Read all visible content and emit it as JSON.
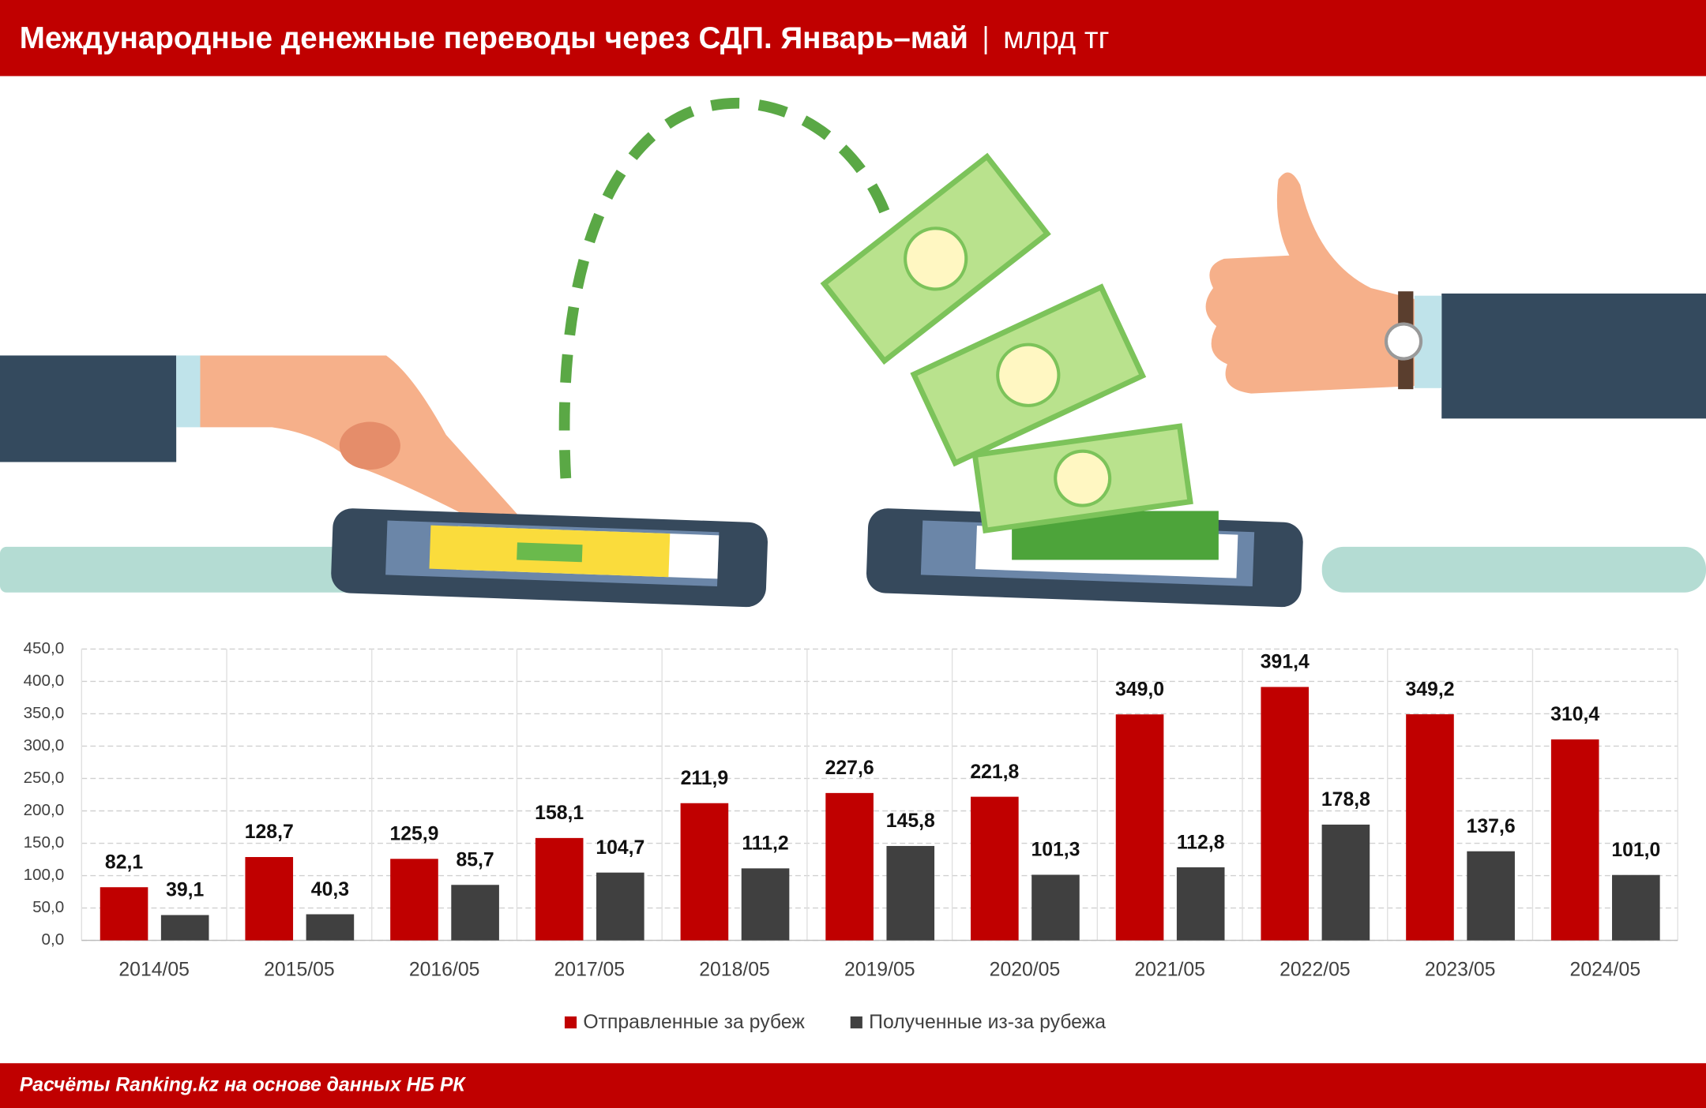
{
  "chart_data": {
    "type": "bar",
    "title": "Международные денежные переводы через СДП. Январь–май",
    "unit": "млрд тг",
    "source": "Расчёты Ranking.kz на основе данных НБ РК",
    "categories": [
      "2014/05",
      "2015/05",
      "2016/05",
      "2017/05",
      "2018/05",
      "2019/05",
      "2020/05",
      "2021/05",
      "2022/05",
      "2023/05",
      "2024/05"
    ],
    "series": [
      {
        "name": "Отправленные за рубеж",
        "color": "#c00000",
        "values": [
          82.1,
          128.7,
          125.9,
          158.1,
          211.9,
          227.6,
          221.8,
          349.0,
          391.4,
          349.2,
          310.4
        ],
        "value_labels": [
          "82,1",
          "128,7",
          "125,9",
          "158,1",
          "211,9",
          "227,6",
          "221,8",
          "349,0",
          "391,4",
          "349,2",
          "310,4"
        ]
      },
      {
        "name": "Полученные из-за рубежа",
        "color": "#404040",
        "values": [
          39.1,
          40.3,
          85.7,
          104.7,
          111.2,
          145.8,
          101.3,
          112.8,
          178.8,
          137.6,
          101.0
        ],
        "value_labels": [
          "39,1",
          "40,3",
          "85,7",
          "104,7",
          "111,2",
          "145,8",
          "101,3",
          "112,8",
          "178,8",
          "137,6",
          "101,0"
        ]
      }
    ],
    "ylim": [
      0,
      450
    ],
    "yticks": [
      {
        "value": 0,
        "label": "0,0"
      },
      {
        "value": 50,
        "label": "50,0"
      },
      {
        "value": 100,
        "label": "100,0"
      },
      {
        "value": 150,
        "label": "150,0"
      },
      {
        "value": 200,
        "label": "200,0"
      },
      {
        "value": 250,
        "label": "250,0"
      },
      {
        "value": 300,
        "label": "300,0"
      },
      {
        "value": 350,
        "label": "350,0"
      },
      {
        "value": 400,
        "label": "400,0"
      },
      {
        "value": 450,
        "label": "450,0"
      }
    ],
    "grid": true,
    "legend": "bottom"
  }
}
